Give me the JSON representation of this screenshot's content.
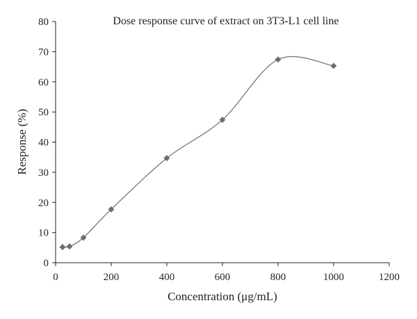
{
  "chart_data": {
    "type": "line",
    "title": "Dose response curve of extract on 3T3-L1 cell line",
    "xlabel": "Concentration (μg/mL)",
    "ylabel": "Response (%)",
    "xlim": [
      0,
      1200
    ],
    "ylim": [
      0,
      80
    ],
    "xticks": [
      0,
      200,
      400,
      600,
      800,
      1000,
      1200
    ],
    "yticks": [
      0,
      10,
      20,
      30,
      40,
      50,
      60,
      70,
      80
    ],
    "grid": false,
    "smooth": true,
    "marker": "diamond",
    "series": [
      {
        "color": "#6d6e71",
        "points": [
          {
            "x": 25,
            "y": 5.2
          },
          {
            "x": 50,
            "y": 5.4
          },
          {
            "x": 100,
            "y": 8.3
          },
          {
            "x": 200,
            "y": 17.7
          },
          {
            "x": 400,
            "y": 34.7
          },
          {
            "x": 600,
            "y": 47.4
          },
          {
            "x": 800,
            "y": 67.4
          },
          {
            "x": 1000,
            "y": 65.3
          }
        ]
      }
    ]
  }
}
